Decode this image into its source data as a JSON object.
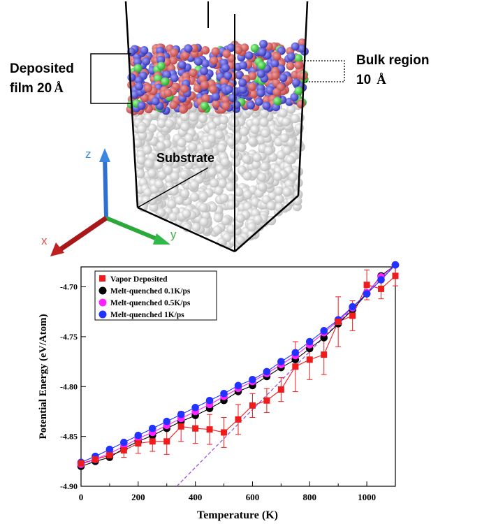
{
  "simulation": {
    "label_deposited_line1": "Deposited",
    "label_deposited_line2": "film 20",
    "label_deposited_unit": "Å",
    "label_bulk_line1": "Bulk region",
    "label_bulk_line2": "10",
    "label_bulk_unit": "Å",
    "label_substrate": "Substrate",
    "axis_z": "z",
    "axis_x": "x",
    "axis_y": "y",
    "colors": {
      "oxygen": "#e06a6a",
      "metal": "#5b5be0",
      "dopant": "#33cc33",
      "substrate": "#e8e8e8"
    }
  },
  "chart_data": {
    "type": "line",
    "title": "",
    "xlabel": "Temperature (K)",
    "ylabel": "Potential Energy (eV/Atom)",
    "xlim": [
      0,
      1100
    ],
    "ylim": [
      -4.9,
      -4.68
    ],
    "xticks": [
      0,
      200,
      400,
      600,
      800,
      1000
    ],
    "yticks": [
      -4.9,
      -4.85,
      -4.8,
      -4.75,
      -4.7
    ],
    "ytick_labels": [
      "-4.90",
      "-4.85",
      "-4.80",
      "-4.75",
      "-4.70"
    ],
    "legend_position": "top-left",
    "series": [
      {
        "name": "Vapor Deposited",
        "color": "#ee1c1c",
        "marker": "square",
        "x": [
          0,
          50,
          100,
          150,
          200,
          250,
          300,
          350,
          400,
          450,
          500,
          550,
          600,
          650,
          700,
          750,
          800,
          850,
          900,
          950,
          1000,
          1050,
          1100
        ],
        "y": [
          -4.877,
          -4.873,
          -4.869,
          -4.864,
          -4.857,
          -4.855,
          -4.855,
          -4.84,
          -4.842,
          -4.843,
          -4.846,
          -4.833,
          -4.819,
          -4.814,
          -4.803,
          -4.78,
          -4.773,
          -4.768,
          -4.735,
          -4.729,
          -4.698,
          -4.702,
          -4.689
        ],
        "err": [
          0,
          0,
          0,
          0.007,
          0.01,
          0.01,
          0.013,
          0.015,
          0.015,
          0.015,
          0.015,
          0.015,
          0.012,
          0.012,
          0.012,
          0.025,
          0.02,
          0.02,
          0.025,
          0.015,
          0.015,
          0.01,
          0.01
        ]
      },
      {
        "name": "Melt-quenched 0.1K/ps",
        "color": "#000000",
        "marker": "circle",
        "x": [
          0,
          50,
          100,
          150,
          200,
          250,
          300,
          350,
          400,
          450,
          500,
          550,
          600,
          650,
          700,
          750,
          800,
          850,
          900,
          950,
          1000,
          1050,
          1100
        ],
        "y": [
          -4.88,
          -4.875,
          -4.871,
          -4.862,
          -4.855,
          -4.849,
          -4.842,
          -4.835,
          -4.829,
          -4.822,
          -4.814,
          -4.805,
          -4.799,
          -4.79,
          -4.781,
          -4.773,
          -4.762,
          -4.751,
          -4.737,
          -4.723,
          -4.707,
          -4.689,
          -4.678
        ]
      },
      {
        "name": "Melt-quenched 0.5K/ps",
        "color": "#ff22ff",
        "marker": "circle",
        "x": [
          0,
          50,
          100,
          150,
          200,
          250,
          300,
          350,
          400,
          450,
          500,
          550,
          600,
          650,
          700,
          750,
          800,
          850,
          900,
          950,
          1000,
          1050,
          1100
        ],
        "y": [
          -4.878,
          -4.873,
          -4.867,
          -4.86,
          -4.852,
          -4.846,
          -4.839,
          -4.832,
          -4.825,
          -4.818,
          -4.81,
          -4.802,
          -4.795,
          -4.787,
          -4.778,
          -4.769,
          -4.758,
          -4.746,
          -4.734,
          -4.721,
          -4.706,
          -4.69,
          -4.678
        ]
      },
      {
        "name": "Melt-quenched 1K/ps",
        "color": "#2233ff",
        "marker": "circle",
        "x": [
          0,
          50,
          100,
          150,
          200,
          250,
          300,
          350,
          400,
          450,
          500,
          550,
          600,
          650,
          700,
          750,
          800,
          850,
          900,
          950,
          1000,
          1050,
          1100
        ],
        "y": [
          -4.876,
          -4.87,
          -4.863,
          -4.856,
          -4.849,
          -4.842,
          -4.835,
          -4.828,
          -4.821,
          -4.814,
          -4.807,
          -4.799,
          -4.793,
          -4.785,
          -4.775,
          -4.766,
          -4.755,
          -4.744,
          -4.733,
          -4.72,
          -4.707,
          -4.693,
          -4.678
        ]
      }
    ],
    "reference_line": {
      "color": "#9955dd",
      "style": "dashed",
      "x": [
        335,
        1100
      ],
      "y": [
        -4.9,
        -4.678
      ]
    }
  }
}
